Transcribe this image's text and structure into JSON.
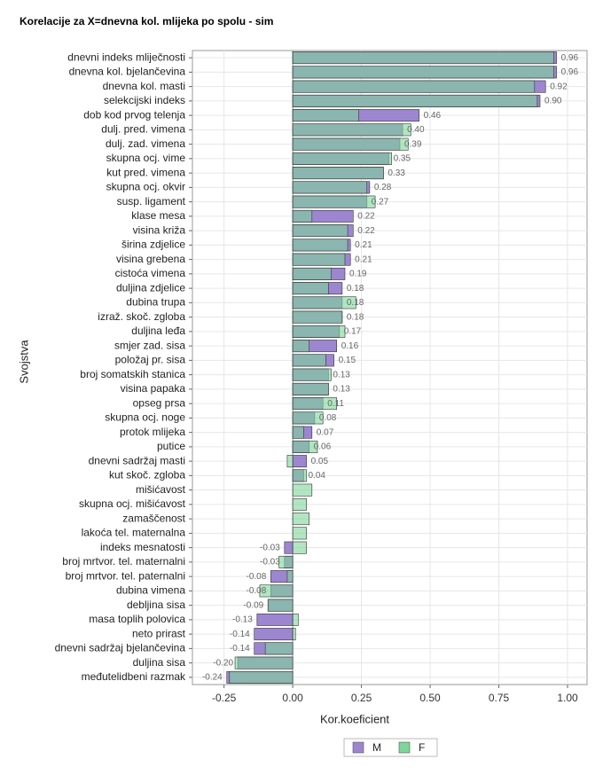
{
  "chart_data": {
    "type": "bar",
    "orientation": "horizontal",
    "title": "Korelacije za X=dnevna kol. mlijeka po spolu - sim",
    "x_label": "Kor.koeficient",
    "y_label": "Svojstva",
    "categories": [
      "dnevni indeks mliječnosti",
      "dnevna kol. bjelančevina",
      "dnevna kol. masti",
      "selekcijski indeks",
      "dob kod prvog telenja",
      "dulj. pred. vimena",
      "dulj. zad. vimena",
      "skupna ocj. vime",
      "kut pred. vimena",
      "skupna ocj. okvir",
      "susp. ligament",
      "klase mesa",
      "visina križa",
      "širina zdjelice",
      "visina grebena",
      "cistoća vimena",
      "duljina zdjelice",
      "dubina trupa",
      "izraž. skoč. zgloba",
      "duljina leđa",
      "smjer zad. sisa",
      "položaj pr. sisa",
      "broj somatskih stanica",
      "visina papaka",
      "opseg prsa",
      "skupna ocj. noge",
      "protok mlijeka",
      "putice",
      "dnevni sadržaj masti",
      "kut skoč. zgloba",
      "mišićavost",
      "skupna ocj. mišićavost",
      "zamaščenost",
      "lakoća tel. maternalna",
      "indeks mesnatosti",
      "broj mrtvor. tel. maternalni",
      "broj mrtvor. tel. paternalni",
      "dubina vimena",
      "debljina sisa",
      "masa toplih polovica",
      "neto prirast",
      "dnevni sadržaj bjelančevina",
      "duljina sisa",
      "međutelidbeni razmak"
    ],
    "series": [
      {
        "name": "M",
        "color": "#9d86d0",
        "values": [
          0.96,
          0.96,
          0.92,
          0.9,
          0.46,
          0.4,
          0.39,
          0.35,
          0.33,
          0.28,
          0.27,
          0.22,
          0.22,
          0.21,
          0.21,
          0.19,
          0.18,
          0.18,
          0.18,
          0.17,
          0.16,
          0.15,
          0.13,
          0.13,
          0.11,
          0.08,
          0.07,
          0.06,
          0.05,
          0.04,
          null,
          null,
          null,
          null,
          -0.03,
          -0.03,
          -0.08,
          -0.08,
          -0.09,
          -0.13,
          -0.14,
          -0.14,
          -0.2,
          -0.24
        ],
        "value_labels": [
          "0.96",
          "0.96",
          "0.92",
          "0.90",
          "0.46",
          "0.40",
          "0.39",
          "0.35",
          "0.33",
          "0.28",
          "0.27",
          "0.22",
          "0.22",
          "0.21",
          "0.21",
          "0.19",
          "0.18",
          "0.18",
          "0.18",
          "0.17",
          "0.16",
          "0.15",
          "0.13",
          "0.13",
          "0.11",
          "0.08",
          "0.07",
          "0.06",
          "0.05",
          "0.04",
          null,
          null,
          null,
          null,
          "-0.03",
          "-0.03",
          "-0.08",
          "-0.08",
          "-0.09",
          "-0.13",
          "-0.14",
          "-0.14",
          "-0.20",
          "-0.24"
        ]
      },
      {
        "name": "F",
        "color": "#7fd69a",
        "values": [
          0.95,
          0.95,
          0.88,
          0.89,
          0.24,
          0.43,
          0.42,
          0.36,
          0.33,
          0.27,
          0.3,
          0.07,
          0.2,
          0.2,
          0.19,
          0.14,
          0.13,
          0.23,
          0.18,
          0.19,
          0.06,
          0.12,
          0.14,
          0.13,
          0.16,
          0.11,
          0.04,
          0.09,
          -0.02,
          0.05,
          0.07,
          0.05,
          0.06,
          0.05,
          0.05,
          -0.05,
          -0.02,
          -0.12,
          -0.09,
          0.02,
          0.01,
          -0.1,
          -0.21,
          -0.23
        ]
      }
    ],
    "xlim": [
      -0.365,
      1.071
    ],
    "xticks": [
      {
        "value": -0.25,
        "label": "-0.25"
      },
      {
        "value": 0,
        "label": "0.00"
      },
      {
        "value": 0.25,
        "label": "0.25"
      },
      {
        "value": 0.5,
        "label": "0.50"
      },
      {
        "value": 0.75,
        "label": "0.75"
      },
      {
        "value": 1,
        "label": "1.00"
      }
    ],
    "grid": true
  }
}
